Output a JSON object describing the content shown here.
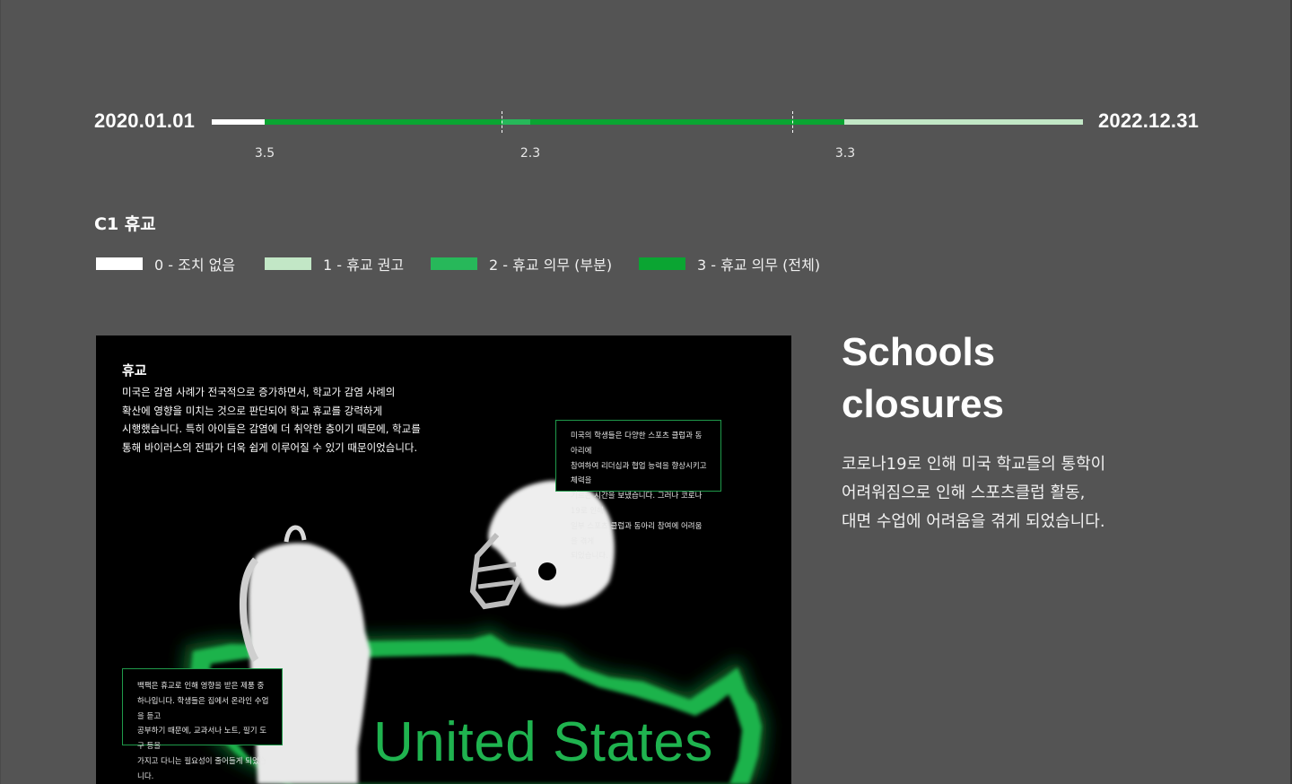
{
  "timeline": {
    "start_date": "2020.01.01",
    "end_date": "2022.12.31",
    "segment_levels": [
      0,
      3,
      2,
      3,
      1
    ],
    "values": [
      "3.5",
      "2.3",
      "3.3"
    ]
  },
  "legend": {
    "title": "C1 휴교",
    "items": [
      {
        "label": "0 - 조치 없음",
        "color": "#ffffff"
      },
      {
        "label": "1 - 휴교 권고",
        "color": "#c2e7c6"
      },
      {
        "label": "2 - 휴교 의무 (부분)",
        "color": "#27b85a"
      },
      {
        "label": "3 - 휴교 의무 (전체)",
        "color": "#0aa532"
      }
    ]
  },
  "panel": {
    "heading": "휴교",
    "body_lines": [
      "미국은 감염 사례가 전국적으로 증가하면서, 학교가 감염 사례의",
      "확산에 영향을 미치는 것으로 판단되어 학교 휴교를 강력하게",
      "시행했습니다. 특히 아이들은 감염에 더 취약한 층이기 때문에, 학교를",
      "통해 바이러스의 전파가 더욱 쉽게 이루어질 수 있기 때문이었습니다."
    ],
    "note_sports_lines": [
      "미국의 학생들은 다양한 스포츠 클럽과 동아리에",
      "참여하여 리더십과 협업 능력을 향상시키고 체력을",
      "기르는 시간을 보냈습니다. 그러나 코로나19로 인해",
      "일부 스포츠 클럽과 동아리 참여에 어려움을 겪게",
      "되었습니다."
    ],
    "note_backpack_lines": [
      "백팩은 휴교로 인해 영향을 받은 제품 중",
      "하나입니다. 학생들은 집에서 온라인 수업을 듣고",
      "공부하기 때문에, 교과서나 노트, 필기 도구 등을",
      "가지고 다니는 필요성이 줄어들게 되었습니다."
    ],
    "country_label": "United States",
    "icons": [
      "backpack-icon",
      "football-helmet-icon",
      "us-map-icon"
    ]
  },
  "right": {
    "title_lines": [
      "Schools",
      "closures"
    ],
    "desc_lines": [
      "코로나19로 인해 미국 학교들의 통학이",
      "어려워짐으로 인해 스포츠클럽 활동,",
      "대면 수업에 어려움을 겪게 되었습니다."
    ]
  },
  "colors": {
    "background": "#545454",
    "panel": "#000000",
    "accent": "#1fb34f"
  }
}
